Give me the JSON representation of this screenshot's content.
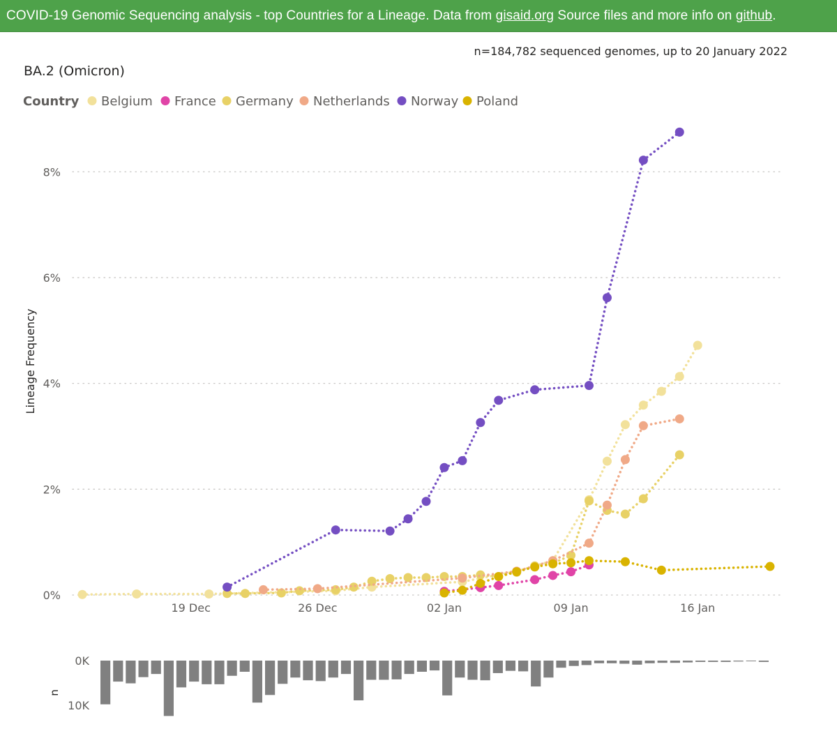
{
  "banner": {
    "text_main": "COVID-19 Genomic Sequencing analysis - top Countries for a Lineage. Data from ",
    "link1": "gisaid.org",
    "text_mid": " Source files and more info on ",
    "link2": "github",
    "text_end": "."
  },
  "chart_data": [
    {
      "type": "line",
      "title": "BA.2 (Omicron)",
      "subtitle": "n=184,782 sequenced genomes, up to 20 January 2022",
      "ylabel": "Lineage Frequency",
      "xlabel": "",
      "legend_title": "Country",
      "legend_position": "top-left",
      "ylim": [
        0,
        0.088
      ],
      "xlim": [
        "2021-12-13",
        "2022-01-20"
      ],
      "y_ticks": [
        0,
        0.02,
        0.04,
        0.06,
        0.08
      ],
      "y_tick_labels": [
        "0%",
        "2%",
        "4%",
        "6%",
        "8%"
      ],
      "x_ticks": [
        "2021-12-19",
        "2021-12-26",
        "2022-01-02",
        "2022-01-09",
        "2022-01-16"
      ],
      "x_tick_labels": [
        "19 Dec",
        "26 Dec",
        "02 Jan",
        "09 Jan",
        "16 Jan"
      ],
      "grid": "horizontal-dotted",
      "line_style": "dotted",
      "series": [
        {
          "name": "Belgium",
          "color": "#f2e19b",
          "points": [
            [
              "2021-12-13",
              0.0001
            ],
            [
              "2021-12-16",
              0.0002
            ],
            [
              "2021-12-20",
              0.0002
            ],
            [
              "2021-12-27",
              0.0008
            ],
            [
              "2021-12-29",
              0.0015
            ],
            [
              "2022-01-03",
              0.0025
            ],
            [
              "2022-01-06",
              0.0045
            ],
            [
              "2022-01-08",
              0.0065
            ],
            [
              "2022-01-10",
              0.018
            ],
            [
              "2022-01-11",
              0.0253
            ],
            [
              "2022-01-12",
              0.0322
            ],
            [
              "2022-01-13",
              0.0359
            ],
            [
              "2022-01-14",
              0.0385
            ],
            [
              "2022-01-15",
              0.0413
            ],
            [
              "2022-01-16",
              0.0472
            ]
          ]
        },
        {
          "name": "France",
          "color": "#e044a7",
          "points": [
            [
              "2022-01-02",
              0.0007
            ],
            [
              "2022-01-04",
              0.0014
            ],
            [
              "2022-01-05",
              0.0018
            ],
            [
              "2022-01-07",
              0.0029
            ],
            [
              "2022-01-08",
              0.0037
            ],
            [
              "2022-01-09",
              0.0044
            ],
            [
              "2022-01-10",
              0.0057
            ]
          ]
        },
        {
          "name": "Germany",
          "color": "#e8d166",
          "points": [
            [
              "2021-12-21",
              0.0003
            ],
            [
              "2021-12-22",
              0.0003
            ],
            [
              "2021-12-24",
              0.0004
            ],
            [
              "2021-12-25",
              0.0008
            ],
            [
              "2021-12-27",
              0.001
            ],
            [
              "2021-12-28",
              0.0015
            ],
            [
              "2021-12-29",
              0.0026
            ],
            [
              "2021-12-30",
              0.0031
            ],
            [
              "2021-12-31",
              0.0033
            ],
            [
              "2022-01-01",
              0.0033
            ],
            [
              "2022-01-02",
              0.0035
            ],
            [
              "2022-01-03",
              0.0035
            ],
            [
              "2022-01-04",
              0.0038
            ],
            [
              "2022-01-05",
              0.0035
            ],
            [
              "2022-01-06",
              0.0043
            ],
            [
              "2022-01-07",
              0.0055
            ],
            [
              "2022-01-08",
              0.006
            ],
            [
              "2022-01-09",
              0.0075
            ],
            [
              "2022-01-10",
              0.0178
            ],
            [
              "2022-01-11",
              0.016
            ],
            [
              "2022-01-12",
              0.0153
            ],
            [
              "2022-01-13",
              0.0182
            ],
            [
              "2022-01-15",
              0.0265
            ]
          ]
        },
        {
          "name": "Netherlands",
          "color": "#f0a987",
          "points": [
            [
              "2021-12-23",
              0.001
            ],
            [
              "2021-12-26",
              0.0012
            ],
            [
              "2022-01-03",
              0.0032
            ],
            [
              "2022-01-06",
              0.0045
            ],
            [
              "2022-01-08",
              0.0065
            ],
            [
              "2022-01-10",
              0.0098
            ],
            [
              "2022-01-11",
              0.017
            ],
            [
              "2022-01-12",
              0.0256
            ],
            [
              "2022-01-13",
              0.032
            ],
            [
              "2022-01-15",
              0.0333
            ]
          ]
        },
        {
          "name": "Norway",
          "color": "#744ec2",
          "points": [
            [
              "2021-12-21",
              0.0015
            ],
            [
              "2021-12-27",
              0.0123
            ],
            [
              "2021-12-30",
              0.0121
            ],
            [
              "2021-12-31",
              0.0144
            ],
            [
              "2022-01-01",
              0.0177
            ],
            [
              "2022-01-02",
              0.0241
            ],
            [
              "2022-01-03",
              0.0254
            ],
            [
              "2022-01-04",
              0.0326
            ],
            [
              "2022-01-05",
              0.0368
            ],
            [
              "2022-01-07",
              0.0388
            ],
            [
              "2022-01-10",
              0.0396
            ],
            [
              "2022-01-11",
              0.0562
            ],
            [
              "2022-01-13",
              0.0822
            ],
            [
              "2022-01-15",
              0.0875
            ]
          ]
        },
        {
          "name": "Poland",
          "color": "#d9b300",
          "points": [
            [
              "2022-01-02",
              0.0004
            ],
            [
              "2022-01-03",
              0.0009
            ],
            [
              "2022-01-04",
              0.0022
            ],
            [
              "2022-01-05",
              0.0035
            ],
            [
              "2022-01-06",
              0.0044
            ],
            [
              "2022-01-07",
              0.0053
            ],
            [
              "2022-01-08",
              0.0059
            ],
            [
              "2022-01-09",
              0.0061
            ],
            [
              "2022-01-10",
              0.0065
            ],
            [
              "2022-01-12",
              0.0063
            ],
            [
              "2022-01-14",
              0.0047
            ],
            [
              "2022-01-20",
              0.0054
            ]
          ]
        }
      ]
    },
    {
      "type": "bar",
      "orientation": "downward",
      "ylabel": "n",
      "y_ticks": [
        0,
        10000
      ],
      "y_tick_labels": [
        "0K",
        "10K"
      ],
      "ylim": [
        0,
        12500
      ],
      "color": "#808080",
      "dates": [
        "2021-12-21",
        "2021-12-22",
        "2021-12-23",
        "2021-12-24",
        "2021-12-25",
        "2021-12-26",
        "2021-12-27",
        "2021-12-28",
        "2021-12-29",
        "2021-12-30",
        "2021-12-31",
        "2022-01-01",
        "2022-01-02",
        "2022-01-03",
        "2022-01-04",
        "2022-01-05",
        "2022-01-06",
        "2022-01-07",
        "2022-01-08",
        "2022-01-09",
        "2022-01-10",
        "2022-01-11",
        "2022-01-12",
        "2022-01-13",
        "2022-01-14",
        "2022-01-15",
        "2022-01-16",
        "2022-01-17",
        "2022-01-18",
        "2022-01-19",
        "2022-01-20",
        "2022-01-21",
        "2022-01-22",
        "2022-01-23",
        "2022-01-24",
        "2022-01-25",
        "2022-01-26",
        "2022-01-27",
        "2022-01-28",
        "2022-01-29",
        "2022-01-30",
        "2022-01-31",
        "2022-02-01",
        "2022-02-02",
        "2022-02-03",
        "2022-02-04",
        "2022-02-05",
        "2022-02-06",
        "2022-02-07",
        "2022-02-08",
        "2022-02-09",
        "2022-02-10",
        "2022-02-11"
      ],
      "values": [
        9800,
        4700,
        5100,
        3700,
        3000,
        12400,
        6000,
        4700,
        5300,
        5300,
        3400,
        2500,
        9400,
        7700,
        5200,
        3800,
        4400,
        4600,
        3800,
        3000,
        8900,
        4300,
        4300,
        4200,
        3000,
        2500,
        2200,
        7800,
        3800,
        4300,
        4400,
        2800,
        2300,
        2400,
        5800,
        3800,
        1600,
        1200,
        1000,
        600,
        600,
        700,
        900,
        600,
        500,
        500,
        400,
        300,
        300,
        300,
        200,
        100,
        300
      ]
    }
  ]
}
